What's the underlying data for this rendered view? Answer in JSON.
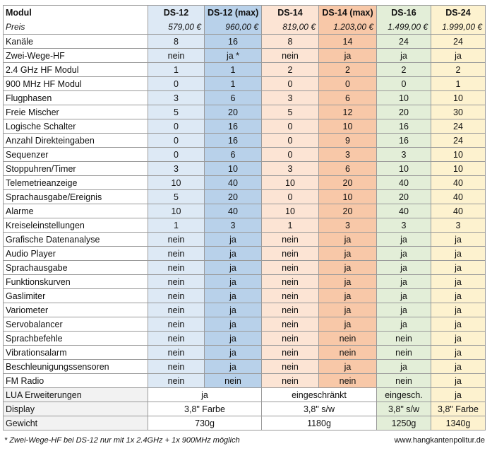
{
  "header": {
    "col0_title": "Modul",
    "col0_sub": "Preis",
    "columns": [
      {
        "name": "DS-12",
        "price": "579,00 €"
      },
      {
        "name": "DS-12  (max)",
        "price": "960,00 €"
      },
      {
        "name": "DS-14",
        "price": "819,00 €"
      },
      {
        "name": "DS-14 (max)",
        "price": "1.203,00 €"
      },
      {
        "name": "DS-16",
        "price": "1.499,00 €"
      },
      {
        "name": "DS-24",
        "price": "1.999,00 €"
      }
    ]
  },
  "rows": [
    {
      "label": "Kanäle",
      "v": [
        "8",
        "16",
        "8",
        "14",
        "24",
        "24"
      ]
    },
    {
      "label": "Zwei-Wege-HF",
      "v": [
        "nein",
        "ja *",
        "nein",
        "ja",
        "ja",
        "ja"
      ]
    },
    {
      "label": "2.4 GHz HF Modul",
      "v": [
        "1",
        "1",
        "2",
        "2",
        "2",
        "2"
      ]
    },
    {
      "label": "900 MHz HF Modul",
      "v": [
        "0",
        "1",
        "0",
        "0",
        "0",
        "1"
      ]
    },
    {
      "label": "Flugphasen",
      "v": [
        "3",
        "6",
        "3",
        "6",
        "10",
        "10"
      ]
    },
    {
      "label": "Freie Mischer",
      "v": [
        "5",
        "20",
        "5",
        "12",
        "20",
        "30"
      ]
    },
    {
      "label": "Logische Schalter",
      "v": [
        "0",
        "16",
        "0",
        "10",
        "16",
        "24"
      ]
    },
    {
      "label": "Anzahl Direkteingaben",
      "v": [
        "0",
        "16",
        "0",
        "9",
        "16",
        "24"
      ]
    },
    {
      "label": "Sequenzer",
      "v": [
        "0",
        "6",
        "0",
        "3",
        "3",
        "10"
      ]
    },
    {
      "label": "Stoppuhren/Timer",
      "v": [
        "3",
        "10",
        "3",
        "6",
        "10",
        "10"
      ]
    },
    {
      "label": "Telemetrieanzeige",
      "v": [
        "10",
        "40",
        "10",
        "20",
        "40",
        "40"
      ]
    },
    {
      "label": "Sprachausgabe/Ereignis",
      "v": [
        "5",
        "20",
        "0",
        "10",
        "20",
        "40"
      ]
    },
    {
      "label": "Alarme",
      "v": [
        "10",
        "40",
        "10",
        "20",
        "40",
        "40"
      ]
    },
    {
      "label": "Kreiseleinstellungen",
      "v": [
        "1",
        "3",
        "1",
        "3",
        "3",
        "3"
      ]
    },
    {
      "label": "Grafische Datenanalyse",
      "v": [
        "nein",
        "ja",
        "nein",
        "ja",
        "ja",
        "ja"
      ]
    },
    {
      "label": "Audio Player",
      "v": [
        "nein",
        "ja",
        "nein",
        "ja",
        "ja",
        "ja"
      ]
    },
    {
      "label": "Sprachausgabe",
      "v": [
        "nein",
        "ja",
        "nein",
        "ja",
        "ja",
        "ja"
      ]
    },
    {
      "label": "Funktionskurven",
      "v": [
        "nein",
        "ja",
        "nein",
        "ja",
        "ja",
        "ja"
      ]
    },
    {
      "label": "Gaslimiter",
      "v": [
        "nein",
        "ja",
        "nein",
        "ja",
        "ja",
        "ja"
      ]
    },
    {
      "label": "Variometer",
      "v": [
        "nein",
        "ja",
        "nein",
        "ja",
        "ja",
        "ja"
      ]
    },
    {
      "label": "Servobalancer",
      "v": [
        "nein",
        "ja",
        "nein",
        "ja",
        "ja",
        "ja"
      ]
    },
    {
      "label": "Sprachbefehle",
      "v": [
        "nein",
        "ja",
        "nein",
        "nein",
        "nein",
        "ja"
      ]
    },
    {
      "label": "Vibrationsalarm",
      "v": [
        "nein",
        "ja",
        "nein",
        "nein",
        "nein",
        "ja"
      ]
    },
    {
      "label": "Beschleunigungssensoren",
      "v": [
        "nein",
        "ja",
        "nein",
        "ja",
        "ja",
        "ja"
      ]
    },
    {
      "label": "FM Radio",
      "v": [
        "nein",
        "nein",
        "nein",
        "nein",
        "nein",
        "ja"
      ]
    }
  ],
  "lua": {
    "label": "LUA Erweiterungen",
    "ds12": "ja",
    "ds14": "eingeschränkt",
    "ds16": "eingesch.",
    "ds24": "ja"
  },
  "display": {
    "label": "Display",
    "ds12": "3,8\" Farbe",
    "ds14": "3,8\" s/w",
    "ds16": "3,8\" s/w",
    "ds24": "3,8\" Farbe"
  },
  "weight": {
    "label": "Gewicht",
    "ds12": "730g",
    "ds14": "1180g",
    "ds16": "1250g",
    "ds24": "1340g"
  },
  "footnote": "* Zwei-Wege-HF bei DS-12 nur mit 1x 2.4GHz + 1x 900MHz möglich",
  "website": "www.hangkantenpolitur.de"
}
